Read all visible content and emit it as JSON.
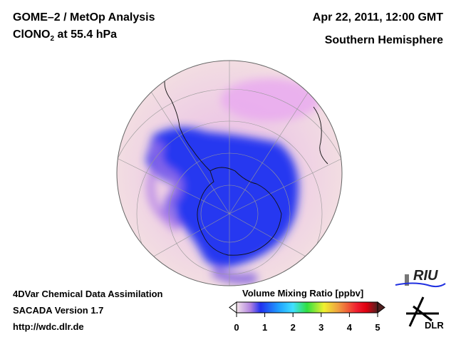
{
  "header": {
    "title": "GOME–2 / MetOp Analysis",
    "species_main": "ClONO",
    "species_sub": "2",
    "species_level": " at 55.4 hPa",
    "datetime": "Apr 22, 2011, 12:00 GMT",
    "region": "Southern Hemisphere"
  },
  "footer": {
    "line1": "4DVar Chemical Data Assimilation",
    "line2": "SACADA Version 1.7",
    "link": "http://wdc.dlr.de"
  },
  "colorbar": {
    "title": "Volume Mixing Ratio [ppbv]",
    "ticks": [
      "0",
      "1",
      "2",
      "3",
      "4",
      "5"
    ],
    "range": [
      0,
      5
    ],
    "colors": [
      "#f4e4ea",
      "#b080e0",
      "#2030f0",
      "#20a0ff",
      "#40e0ff",
      "#30e040",
      "#f0f030",
      "#f0a040",
      "#f02030",
      "#e00010",
      "#502020"
    ]
  },
  "logos": {
    "riu": "RIU",
    "dlr": "DLR"
  }
}
